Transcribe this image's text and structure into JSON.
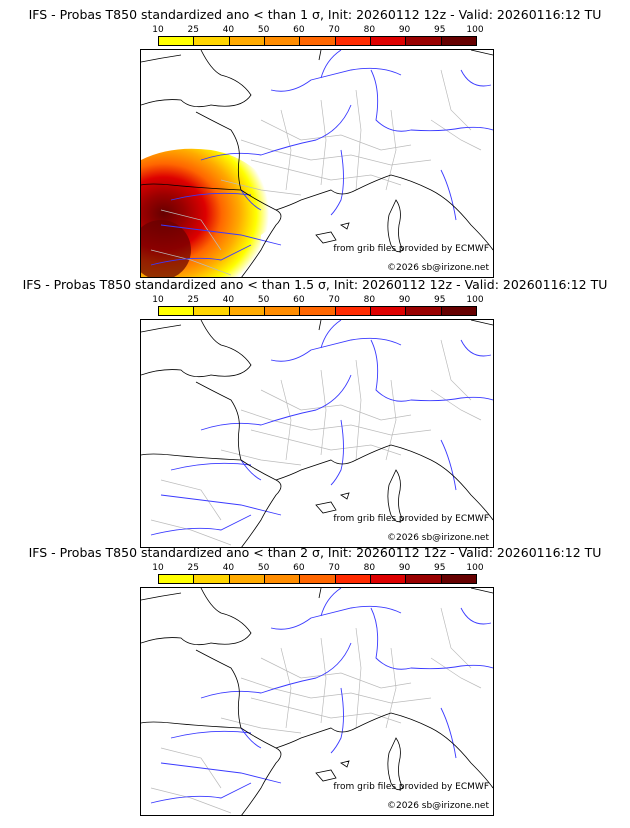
{
  "colorbar": {
    "ticks": [
      "10",
      "25",
      "40",
      "50",
      "60",
      "70",
      "80",
      "90",
      "95",
      "100"
    ],
    "colors": [
      "#ffff00",
      "#ffd500",
      "#ffaa00",
      "#ff8c00",
      "#ff6600",
      "#ff2a00",
      "#dd0000",
      "#990000",
      "#660000"
    ]
  },
  "panels": [
    {
      "title": "IFS - Probas T850  standardized ano < than 1 σ, Init: 20260112 12z - Valid: 20260116:12 TU"
    },
    {
      "title": "IFS - Probas T850  standardized ano < than 1.5 σ, Init: 20260112 12z - Valid: 20260116:12 TU"
    },
    {
      "title": "IFS - Probas T850  standardized ano < than 2 σ, Init: 20260112 12z - Valid: 20260116:12 TU"
    }
  ],
  "credits": {
    "source": "from grib files provided by ECMWF",
    "copyright": "©2026 sb@irizone.net"
  }
}
